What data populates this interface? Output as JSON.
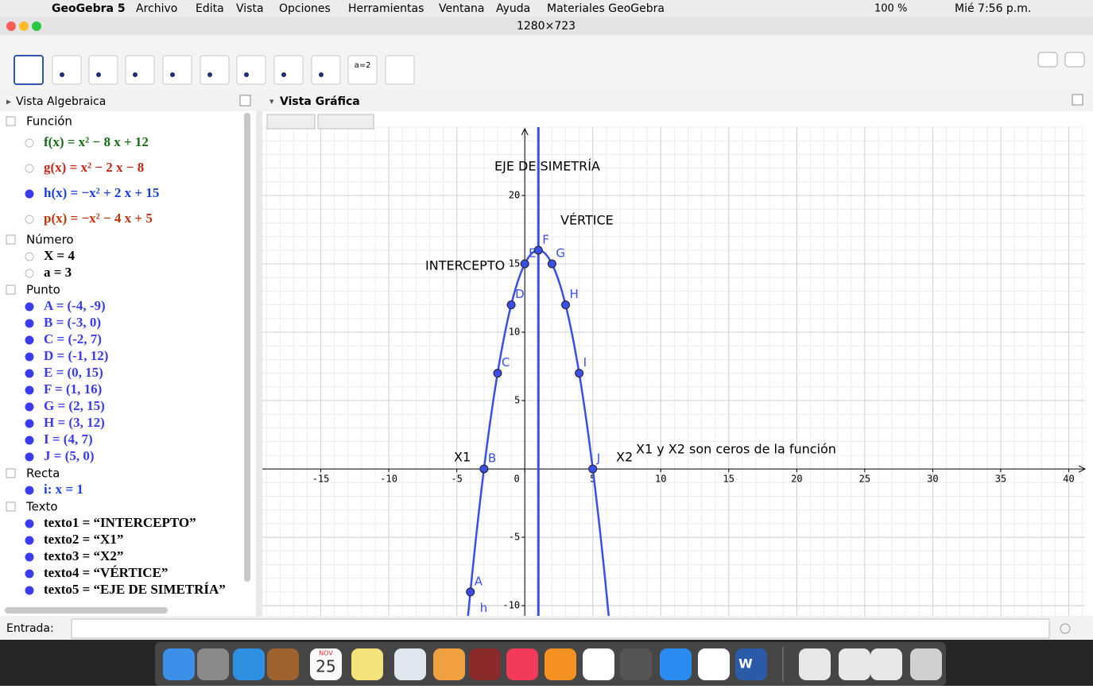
{
  "menu_bar": {
    "app": "GeoGebra 5",
    "items": [
      "Archivo",
      "Edita",
      "Vista",
      "Opciones",
      "Herramientas",
      "Ventana",
      "Ayuda",
      "Materiales GeoGebra"
    ],
    "battery": "100 %",
    "clock": "Mié 7:56 p.m."
  },
  "window_title": "1280×723",
  "toolbar": {
    "slider_tool": "a=2"
  },
  "algebra_view": {
    "title": "Vista Algebraica",
    "groups": [
      {
        "name": "Función",
        "items": [
          {
            "text": "f(x) = x² − 8 x + 12",
            "color": "#1a6b1a",
            "visible": false
          },
          {
            "text": "g(x) = x² − 2 x − 8",
            "color": "#c0281c",
            "visible": false
          },
          {
            "text": "h(x) = −x² + 2 x + 15",
            "color": "#1b3ee0",
            "visible": true
          },
          {
            "text": "p(x) = −x² − 4 x + 5",
            "color": "#c0340c",
            "visible": false
          }
        ]
      },
      {
        "name": "Número",
        "items": [
          {
            "text": "X = 4",
            "color": "#000000",
            "visible": false
          },
          {
            "text": "a = 3",
            "color": "#000000",
            "visible": false
          }
        ]
      },
      {
        "name": "Punto",
        "items": [
          {
            "text": "A = (-4, -9)",
            "color": "#3a3af0",
            "visible": true
          },
          {
            "text": "B = (-3, 0)",
            "color": "#3a3af0",
            "visible": true
          },
          {
            "text": "C = (-2, 7)",
            "color": "#3a3af0",
            "visible": true
          },
          {
            "text": "D = (-1, 12)",
            "color": "#3a3af0",
            "visible": true
          },
          {
            "text": "E = (0, 15)",
            "color": "#3a3af0",
            "visible": true
          },
          {
            "text": "F = (1, 16)",
            "color": "#3a3af0",
            "visible": true
          },
          {
            "text": "G = (2, 15)",
            "color": "#3a3af0",
            "visible": true
          },
          {
            "text": "H = (3, 12)",
            "color": "#3a3af0",
            "visible": true
          },
          {
            "text": "I = (4, 7)",
            "color": "#3a3af0",
            "visible": true
          },
          {
            "text": "J = (5, 0)",
            "color": "#3a3af0",
            "visible": true
          }
        ]
      },
      {
        "name": "Recta",
        "items": [
          {
            "text": "i: x = 1",
            "color": "#1b3ee0",
            "visible": true
          }
        ]
      },
      {
        "name": "Texto",
        "items": [
          {
            "text": "texto1 = “INTERCEPTO”",
            "color": "#000000",
            "visible": true
          },
          {
            "text": "texto2 = “X1”",
            "color": "#000000",
            "visible": true
          },
          {
            "text": "texto3 = “X2”",
            "color": "#000000",
            "visible": true
          },
          {
            "text": "texto4 = “VÉRTICE”",
            "color": "#000000",
            "visible": true
          },
          {
            "text": "texto5 = “EJE DE SIMETRÍA”",
            "color": "#000000",
            "visible": true
          }
        ]
      }
    ]
  },
  "graphics_view": {
    "title": "Vista Gráfica",
    "xlim": [
      -19.3,
      41.2
    ],
    "ylim": [
      -10.75,
      25
    ],
    "xticks": [
      -15,
      -10,
      -5,
      0,
      5,
      10,
      15,
      20,
      25,
      30,
      35,
      40
    ],
    "yticks": [
      -10,
      -5,
      5,
      10,
      15,
      20
    ],
    "grid": true,
    "function": {
      "label": "h",
      "coefficients": [
        -1,
        2,
        15
      ],
      "color": "#3a4ee8"
    },
    "line": {
      "x": 1,
      "color": "#3a4ee8"
    },
    "points": [
      {
        "label": "A",
        "x": -4,
        "y": -9
      },
      {
        "label": "B",
        "x": -3,
        "y": 0
      },
      {
        "label": "C",
        "x": -2,
        "y": 7
      },
      {
        "label": "D",
        "x": -1,
        "y": 12
      },
      {
        "label": "E",
        "x": 0,
        "y": 15
      },
      {
        "label": "F",
        "x": 1,
        "y": 16
      },
      {
        "label": "G",
        "x": 2,
        "y": 15
      },
      {
        "label": "H",
        "x": 3,
        "y": 12
      },
      {
        "label": "I",
        "x": 4,
        "y": 7
      },
      {
        "label": "J",
        "x": 5,
        "y": 0
      }
    ],
    "texts": [
      "EJE DE SIMETRÍA",
      "VÉRTICE",
      "INTERCEPTO",
      "X1",
      "X2",
      "X1 y X2 son ceros de la función"
    ]
  },
  "input_bar": {
    "label": "Entrada:"
  },
  "dock": {
    "calendar_month": "NOV",
    "calendar_day": "25",
    "word": "W"
  }
}
